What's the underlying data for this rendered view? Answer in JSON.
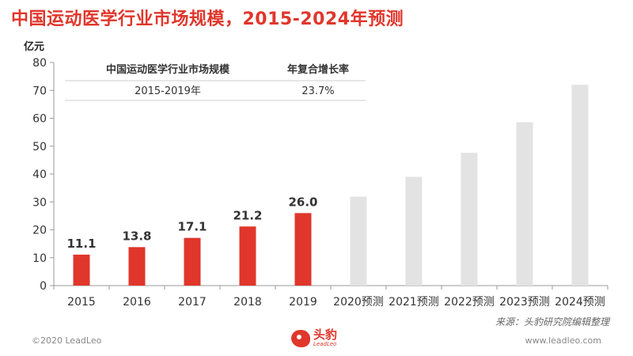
{
  "header": {
    "title": "中国运动医学行业市场规模，2015-2024年预测",
    "unit": "亿元"
  },
  "table": {
    "headers": [
      "中国运动医学行业市场规模",
      "年复合增长率"
    ],
    "row": [
      "2015-2019年",
      "23.7%"
    ]
  },
  "source": "来源：头豹研究院编辑整理",
  "footer": {
    "copyright": "©2020 LeadLeo",
    "website": "www.leadleo.com",
    "logo_cn": "头豹",
    "logo_en": "LeadLeo"
  },
  "colors": {
    "actual": "#e0362b",
    "forecast": "#e3e3e3",
    "title": "#e0362b"
  },
  "chart_data": {
    "type": "bar",
    "categories": [
      "2015",
      "2016",
      "2017",
      "2018",
      "2019",
      "2020预测",
      "2021预测",
      "2022预测",
      "2023预测",
      "2024预测"
    ],
    "series": [
      {
        "values": [
          11.1,
          13.8,
          17.1,
          21.2,
          26.0,
          31.9,
          39.0,
          47.6,
          58.6,
          72.0
        ],
        "labels": [
          "11.1",
          "13.8",
          "17.1",
          "21.2",
          "26.0",
          null,
          null,
          null,
          null,
          null
        ]
      }
    ],
    "actual_count": 5,
    "ylabel": "亿元",
    "ylim": [
      0,
      80
    ],
    "yticks": [
      0,
      10,
      20,
      30,
      40,
      50,
      60,
      70,
      80
    ],
    "grid": false
  }
}
